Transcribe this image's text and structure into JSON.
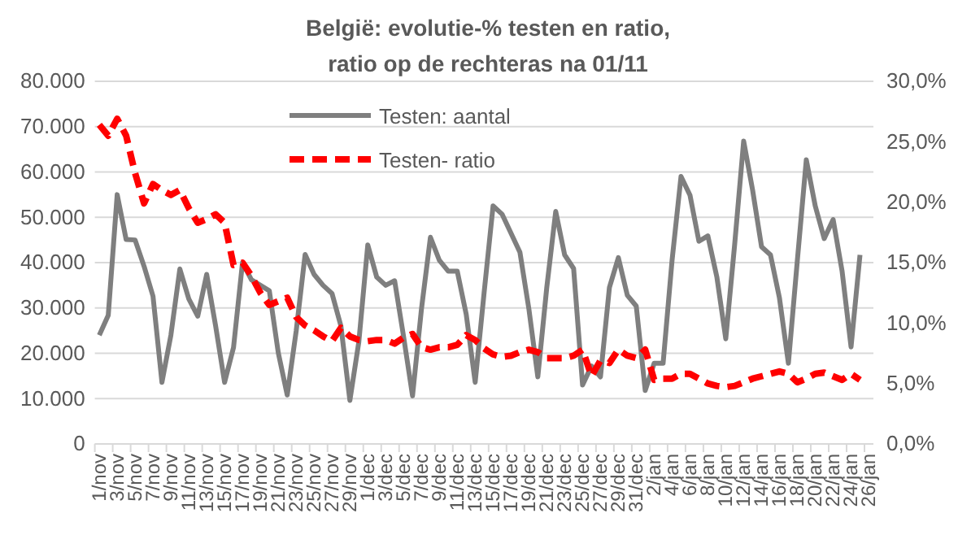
{
  "chart_data": {
    "type": "line",
    "title": "België: evolutie-% testen en ratio,\nratio op de rechteras na 01/11",
    "categories": [
      "1/nov",
      null,
      "3/nov",
      null,
      "5/nov",
      null,
      "7/nov",
      null,
      "9/nov",
      null,
      "11/nov",
      null,
      "13/nov",
      null,
      "15/nov",
      null,
      "17/nov",
      null,
      "19/nov",
      null,
      "21/nov",
      null,
      "23/nov",
      null,
      "25/nov",
      null,
      "27/nov",
      null,
      "29/nov",
      null,
      "1/dec",
      null,
      "3/dec",
      null,
      "5/dec",
      null,
      "7/dec",
      null,
      "9/dec",
      null,
      "11/dec",
      null,
      "13/dec",
      null,
      "15/dec",
      null,
      "17/dec",
      null,
      "19/dec",
      null,
      "21/dec",
      null,
      "23/dec",
      null,
      "25/dec",
      null,
      "27/dec",
      null,
      "29/dec",
      null,
      "31/dec",
      null,
      "2/jan",
      null,
      "4/jan",
      null,
      "6/jan",
      null,
      "8/jan",
      null,
      "10/jan",
      null,
      "12/jan",
      null,
      "14/jan",
      null,
      "16/jan",
      null,
      "18/jan",
      null,
      "20/jan",
      null,
      "22/jan",
      null,
      "24/jan",
      null,
      "26/jan"
    ],
    "series": [
      {
        "name": "Testen: aantal",
        "color": "#7f7f7f",
        "line_style": "solid",
        "values": [
          24000,
          28400,
          55000,
          45100,
          45000,
          39200,
          32600,
          13600,
          24000,
          38600,
          32000,
          28200,
          37400,
          26000,
          13600,
          21300,
          40000,
          36200,
          35000,
          33800,
          20100,
          10800,
          24900,
          41800,
          37400,
          35000,
          33200,
          26000,
          9600,
          22500,
          43900,
          36800,
          35000,
          36000,
          23700,
          10600,
          29800,
          45600,
          40500,
          38100,
          38100,
          28600,
          13600,
          33400,
          52500,
          50700,
          46500,
          42300,
          29800,
          14800,
          34500,
          51300,
          41700,
          38700,
          13000,
          17200,
          14800,
          34500,
          41100,
          32800,
          30400,
          11800,
          17800,
          17800,
          40500,
          59000,
          54900,
          44700,
          45900,
          36900,
          23200,
          44100,
          66800,
          56000,
          43500,
          41700,
          32200,
          17800,
          40500,
          62700,
          52500,
          45300,
          49500,
          38100,
          21400,
          41700,
          null
        ]
      },
      {
        "name": "Testen- ratio",
        "color": "#ff0000",
        "line_style": "dashed",
        "axis": "y2",
        "values": [
          26.4,
          25.5,
          26.9,
          25.5,
          22.4,
          19.9,
          21.5,
          21.0,
          20.6,
          21.0,
          19.5,
          18.3,
          18.6,
          19.0,
          18.3,
          14.8,
          15.0,
          13.9,
          12.5,
          11.5,
          11.8,
          12.1,
          10.5,
          9.8,
          9.4,
          8.9,
          8.5,
          9.6,
          8.9,
          8.6,
          8.5,
          8.6,
          8.6,
          8.3,
          8.8,
          9.1,
          8.0,
          7.8,
          8.0,
          8.0,
          8.2,
          9.0,
          8.6,
          7.9,
          7.4,
          7.2,
          7.3,
          7.6,
          7.8,
          7.6,
          7.1,
          7.1,
          7.1,
          7.3,
          7.8,
          5.6,
          6.9,
          6.7,
          7.8,
          7.3,
          7.1,
          7.8,
          5.3,
          5.4,
          5.4,
          5.8,
          5.8,
          5.4,
          5.0,
          4.8,
          4.7,
          4.8,
          5.1,
          5.4,
          5.6,
          5.8,
          6.0,
          5.8,
          5.1,
          5.4,
          5.8,
          5.9,
          5.6,
          5.3,
          5.8,
          5.3,
          null
        ]
      }
    ],
    "ylim": [
      0,
      80000
    ],
    "yticks": [
      0,
      {
        "value": 10000,
        "label": "10.000"
      },
      {
        "value": 20000,
        "label": "20.000"
      },
      {
        "value": 30000,
        "label": "30.000"
      },
      {
        "value": 40000,
        "label": "40.000"
      },
      {
        "value": 50000,
        "label": "50.000"
      },
      {
        "value": 60000,
        "label": "60.000"
      },
      {
        "value": 70000,
        "label": "70.000"
      },
      {
        "value": 80000,
        "label": "80.000"
      }
    ],
    "y2lim": [
      0,
      30
    ],
    "y2ticks": [
      {
        "value": 0,
        "label": "0,0%"
      },
      {
        "value": 5,
        "label": "5,0%"
      },
      {
        "value": 10,
        "label": "10,0%"
      },
      {
        "value": 15,
        "label": "15,0%"
      },
      {
        "value": 20,
        "label": "20,0%"
      },
      {
        "value": 25,
        "label": "25,0%"
      },
      {
        "value": 30,
        "label": "30,0%"
      }
    ],
    "grid": "y",
    "legend": "top",
    "marker": "none"
  }
}
